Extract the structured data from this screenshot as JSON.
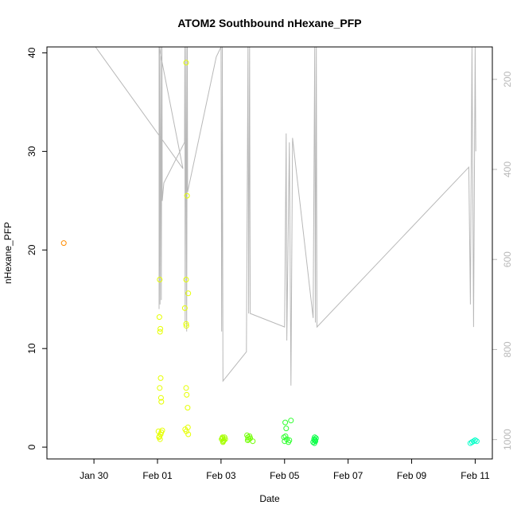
{
  "chart_data": {
    "type": "scatter",
    "title": "ATOM2 Southbound nHexane_PFP",
    "xlabel": "Date",
    "ylabel": "nHexane_PFP",
    "x_ticks": [
      {
        "x": 0,
        "label": "Jan 30"
      },
      {
        "x": 2,
        "label": "Feb 01"
      },
      {
        "x": 4,
        "label": "Feb 03"
      },
      {
        "x": 6,
        "label": "Feb 05"
      },
      {
        "x": 8,
        "label": "Feb 07"
      },
      {
        "x": 10,
        "label": "Feb 09"
      },
      {
        "x": 12,
        "label": "Feb 11"
      }
    ],
    "xlim": [
      -1.48,
      12.54
    ],
    "ylim": [
      -1.2,
      40.6
    ],
    "y_ticks": [
      0,
      10,
      20,
      30,
      40
    ],
    "y2_ticks": [
      200,
      400,
      600,
      800,
      1000
    ],
    "y2lim": [
      1043,
      128
    ],
    "y2_color": "#b8b8b8",
    "points": [
      {
        "x": -0.95,
        "y": 20.7,
        "color": "#ff8c00"
      },
      {
        "x": 2.03,
        "y": 1.6,
        "color": "#e6ff00"
      },
      {
        "x": 2.05,
        "y": 1.0,
        "color": "#e6ff00"
      },
      {
        "x": 2.06,
        "y": 13.2,
        "color": "#e6ff00"
      },
      {
        "x": 2.07,
        "y": 17.0,
        "color": "#e6ff00"
      },
      {
        "x": 2.08,
        "y": 11.7,
        "color": "#e6ff00"
      },
      {
        "x": 2.09,
        "y": 12.0,
        "color": "#e6ff00"
      },
      {
        "x": 2.07,
        "y": 6.0,
        "color": "#e6ff00"
      },
      {
        "x": 2.1,
        "y": 7.0,
        "color": "#e6ff00"
      },
      {
        "x": 2.11,
        "y": 5.0,
        "color": "#e6ff00"
      },
      {
        "x": 2.12,
        "y": 4.6,
        "color": "#e6ff00"
      },
      {
        "x": 2.08,
        "y": 0.8,
        "color": "#e6ff00"
      },
      {
        "x": 2.1,
        "y": 1.3,
        "color": "#e6ff00"
      },
      {
        "x": 2.12,
        "y": 1.5,
        "color": "#e6ff00"
      },
      {
        "x": 2.15,
        "y": 1.7,
        "color": "#e6ff00"
      },
      {
        "x": 2.06,
        "y": 1.1,
        "color": "#e6ff00"
      },
      {
        "x": 2.9,
        "y": 39.0,
        "color": "#e6ff00"
      },
      {
        "x": 2.93,
        "y": 25.5,
        "color": "#e6ff00"
      },
      {
        "x": 2.9,
        "y": 17.0,
        "color": "#e6ff00"
      },
      {
        "x": 2.97,
        "y": 15.6,
        "color": "#e6ff00"
      },
      {
        "x": 2.86,
        "y": 14.1,
        "color": "#e6ff00"
      },
      {
        "x": 2.9,
        "y": 12.5,
        "color": "#e6ff00"
      },
      {
        "x": 2.91,
        "y": 12.3,
        "color": "#e6ff00"
      },
      {
        "x": 2.9,
        "y": 6.0,
        "color": "#e6ff00"
      },
      {
        "x": 2.92,
        "y": 5.3,
        "color": "#e6ff00"
      },
      {
        "x": 2.95,
        "y": 4.0,
        "color": "#e6ff00"
      },
      {
        "x": 2.96,
        "y": 2.0,
        "color": "#e6ff00"
      },
      {
        "x": 2.87,
        "y": 1.8,
        "color": "#e6ff00"
      },
      {
        "x": 2.91,
        "y": 1.6,
        "color": "#e6ff00"
      },
      {
        "x": 2.97,
        "y": 1.3,
        "color": "#e6ff00"
      },
      {
        "x": 4.02,
        "y": 0.8,
        "color": "#a6ff00"
      },
      {
        "x": 4.05,
        "y": 1.0,
        "color": "#a6ff00"
      },
      {
        "x": 4.07,
        "y": 0.6,
        "color": "#a6ff00"
      },
      {
        "x": 4.04,
        "y": 0.9,
        "color": "#a6ff00"
      },
      {
        "x": 4.09,
        "y": 0.7,
        "color": "#a6ff00"
      },
      {
        "x": 4.11,
        "y": 1.0,
        "color": "#a6ff00"
      },
      {
        "x": 4.06,
        "y": 0.5,
        "color": "#a6ff00"
      },
      {
        "x": 4.13,
        "y": 0.8,
        "color": "#a6ff00"
      },
      {
        "x": 4.82,
        "y": 1.2,
        "color": "#6fff00"
      },
      {
        "x": 4.85,
        "y": 1.0,
        "color": "#6fff00"
      },
      {
        "x": 4.87,
        "y": 0.8,
        "color": "#6fff00"
      },
      {
        "x": 4.9,
        "y": 1.1,
        "color": "#6fff00"
      },
      {
        "x": 4.84,
        "y": 0.7,
        "color": "#6fff00"
      },
      {
        "x": 4.92,
        "y": 0.9,
        "color": "#6fff00"
      },
      {
        "x": 5.0,
        "y": 0.6,
        "color": "#6fff00"
      },
      {
        "x": 5.98,
        "y": 1.0,
        "color": "#2eff2e"
      },
      {
        "x": 6.02,
        "y": 2.5,
        "color": "#2eff2e"
      },
      {
        "x": 6.05,
        "y": 1.9,
        "color": "#2eff2e"
      },
      {
        "x": 6.03,
        "y": 1.1,
        "color": "#2eff2e"
      },
      {
        "x": 6.07,
        "y": 0.8,
        "color": "#2eff2e"
      },
      {
        "x": 6.12,
        "y": 0.5,
        "color": "#2eff2e"
      },
      {
        "x": 6.15,
        "y": 0.7,
        "color": "#2eff2e"
      },
      {
        "x": 6.2,
        "y": 2.7,
        "color": "#2eff2e"
      },
      {
        "x": 6.0,
        "y": 0.6,
        "color": "#2eff2e"
      },
      {
        "x": 6.9,
        "y": 0.5,
        "color": "#00ff40"
      },
      {
        "x": 6.93,
        "y": 0.8,
        "color": "#00ff40"
      },
      {
        "x": 6.95,
        "y": 1.0,
        "color": "#00ff40"
      },
      {
        "x": 6.97,
        "y": 0.6,
        "color": "#00ff40"
      },
      {
        "x": 6.99,
        "y": 0.9,
        "color": "#00ff40"
      },
      {
        "x": 6.94,
        "y": 0.4,
        "color": "#00ff40"
      },
      {
        "x": 6.96,
        "y": 0.7,
        "color": "#00ff40"
      },
      {
        "x": 11.85,
        "y": 0.4,
        "color": "#00ffc8"
      },
      {
        "x": 11.9,
        "y": 0.5,
        "color": "#00ffc8"
      },
      {
        "x": 11.95,
        "y": 0.6,
        "color": "#00ffc8"
      },
      {
        "x": 12.0,
        "y": 0.7,
        "color": "#00ffc8"
      },
      {
        "x": 12.05,
        "y": 0.6,
        "color": "#00ffc8"
      }
    ],
    "altitude_line": [
      [
        0.05,
        128
      ],
      [
        2.8,
        398
      ],
      [
        2.05,
        128
      ],
      [
        2.05,
        710
      ],
      [
        2.06,
        128
      ],
      [
        2.08,
        700
      ],
      [
        2.1,
        128
      ],
      [
        2.12,
        690
      ],
      [
        2.14,
        128
      ],
      [
        2.15,
        470
      ],
      [
        2.2,
        430
      ],
      [
        2.85,
        340
      ],
      [
        2.86,
        128
      ],
      [
        2.87,
        740
      ],
      [
        2.9,
        128
      ],
      [
        2.92,
        760
      ],
      [
        2.94,
        128
      ],
      [
        2.95,
        450
      ],
      [
        3.85,
        150
      ],
      [
        4.0,
        128
      ],
      [
        4.02,
        760
      ],
      [
        4.04,
        128
      ],
      [
        4.06,
        870
      ],
      [
        4.8,
        805
      ],
      [
        4.85,
        128
      ],
      [
        4.87,
        720
      ],
      [
        4.9,
        128
      ],
      [
        4.92,
        720
      ],
      [
        6.0,
        750
      ],
      [
        6.05,
        320
      ],
      [
        6.07,
        780
      ],
      [
        6.15,
        340
      ],
      [
        6.2,
        880
      ],
      [
        6.25,
        330
      ],
      [
        6.9,
        730
      ],
      [
        6.95,
        128
      ],
      [
        6.97,
        740
      ],
      [
        7.0,
        128
      ],
      [
        7.02,
        750
      ],
      [
        11.8,
        395
      ],
      [
        11.85,
        700
      ],
      [
        11.9,
        128
      ],
      [
        11.95,
        750
      ],
      [
        12.0,
        128
      ],
      [
        12.02,
        360
      ]
    ]
  }
}
